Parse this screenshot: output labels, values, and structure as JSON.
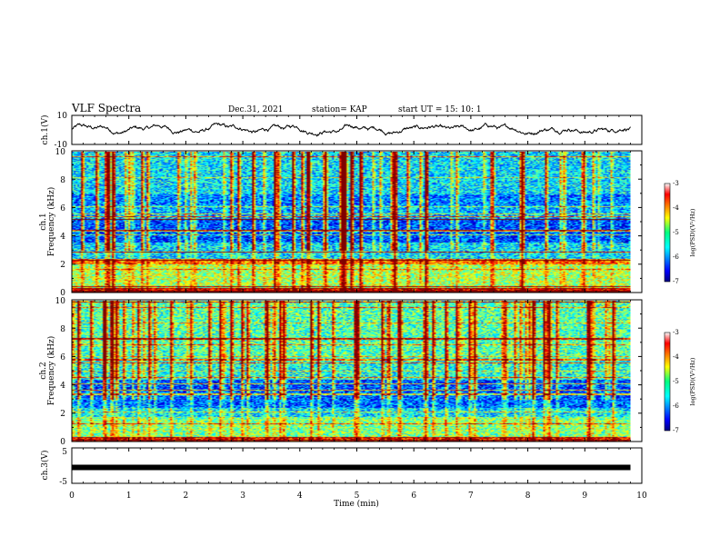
{
  "header": {
    "title": "VLF Spectra",
    "date": "Dec.31, 2021",
    "station": "station= KAP",
    "start_ut": "start  UT =   15: 10: 1"
  },
  "chart_data": [
    {
      "name": "ch1-waveform",
      "type": "line",
      "ylabel": "ch.1(V)",
      "ylim": [
        -10,
        10
      ],
      "yticks": [
        "10",
        "-10"
      ],
      "xlim": [
        0,
        10
      ],
      "approx_level": 0.5,
      "approx_amplitude": 3.5
    },
    {
      "name": "ch1-spectrogram",
      "type": "heatmap",
      "ylabel": "Frequency (kHz)",
      "ylabel_prefix": "ch.1",
      "ylim": [
        0,
        10
      ],
      "yticks": [
        "0",
        "2",
        "4",
        "6",
        "8",
        "10"
      ],
      "xlim": [
        0,
        9.8
      ],
      "colorbar": {
        "label": "log(PSD)(V²/Hz)",
        "range": [
          -7,
          -3
        ],
        "ticks": [
          "-3",
          "-4",
          "-5",
          "-6",
          "-7"
        ]
      }
    },
    {
      "name": "ch2-spectrogram",
      "type": "heatmap",
      "ylabel": "Frequency (kHz)",
      "ylabel_prefix": "ch.2",
      "ylim": [
        0,
        10
      ],
      "yticks": [
        "0",
        "2",
        "4",
        "6",
        "8",
        "10"
      ],
      "xlim": [
        0,
        9.8
      ],
      "colorbar": {
        "label": "log(PSD)(V²/Hz)",
        "range": [
          -7,
          -3
        ],
        "ticks": [
          "-3",
          "-4",
          "-5",
          "-6",
          "-7"
        ]
      }
    },
    {
      "name": "ch3-waveform",
      "type": "line",
      "ylabel": "ch.3(V)",
      "ylim": [
        -5,
        5
      ],
      "yticks": [
        "5",
        "-5"
      ],
      "xlim": [
        0,
        10
      ],
      "approx_level": -0.5
    }
  ],
  "xaxis": {
    "label": "Time  (min)",
    "ticks": [
      "0",
      "1",
      "2",
      "3",
      "4",
      "5",
      "6",
      "7",
      "8",
      "9",
      "10"
    ],
    "range": [
      0,
      10
    ]
  },
  "colors": {
    "low": "#00007f",
    "mid": "#00ff80",
    "high": "#ff0000",
    "line": "#000000"
  }
}
